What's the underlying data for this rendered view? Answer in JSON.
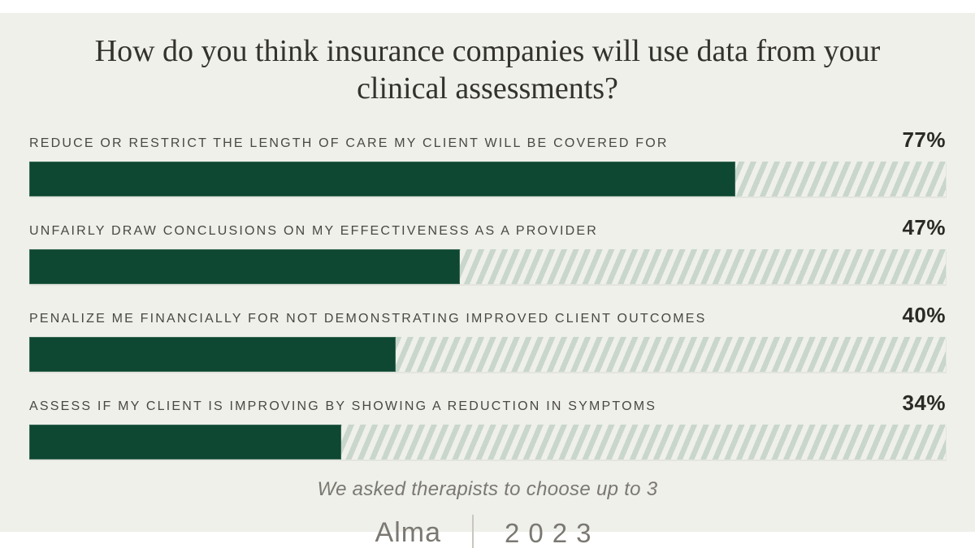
{
  "chart_data": {
    "type": "bar",
    "orientation": "horizontal",
    "title": "How do you think insurance companies will use data from your clinical assessments?",
    "categories": [
      "REDUCE OR RESTRICT THE LENGTH OF CARE MY CLIENT WILL BE COVERED FOR",
      "UNFAIRLY DRAW CONCLUSIONS ON MY EFFECTIVENESS AS A PROVIDER",
      "PENALIZE ME FINANCIALLY FOR NOT DEMONSTRATING IMPROVED CLIENT OUTCOMES",
      "ASSESS IF MY CLIENT IS IMPROVING BY SHOWING A REDUCTION IN SYMPTOMS"
    ],
    "values": [
      77,
      47,
      40,
      34
    ],
    "value_labels": [
      "77%",
      "47%",
      "40%",
      "34%"
    ],
    "xlim": [
      0,
      100
    ],
    "grid": "off",
    "legend": "none",
    "note": "We asked therapists to choose up to 3"
  },
  "footer": {
    "brand": "Alma",
    "year": "2023"
  },
  "colors": {
    "panel_bg": "#eef0e9",
    "bar_fill": "#0e4732",
    "stripe": "#c9d6cb",
    "title_ink": "#34322c",
    "label_ink": "#4a4843",
    "value_ink": "#2b2a26",
    "muted_ink": "#7b7872",
    "divider": "#c9c6bf"
  }
}
